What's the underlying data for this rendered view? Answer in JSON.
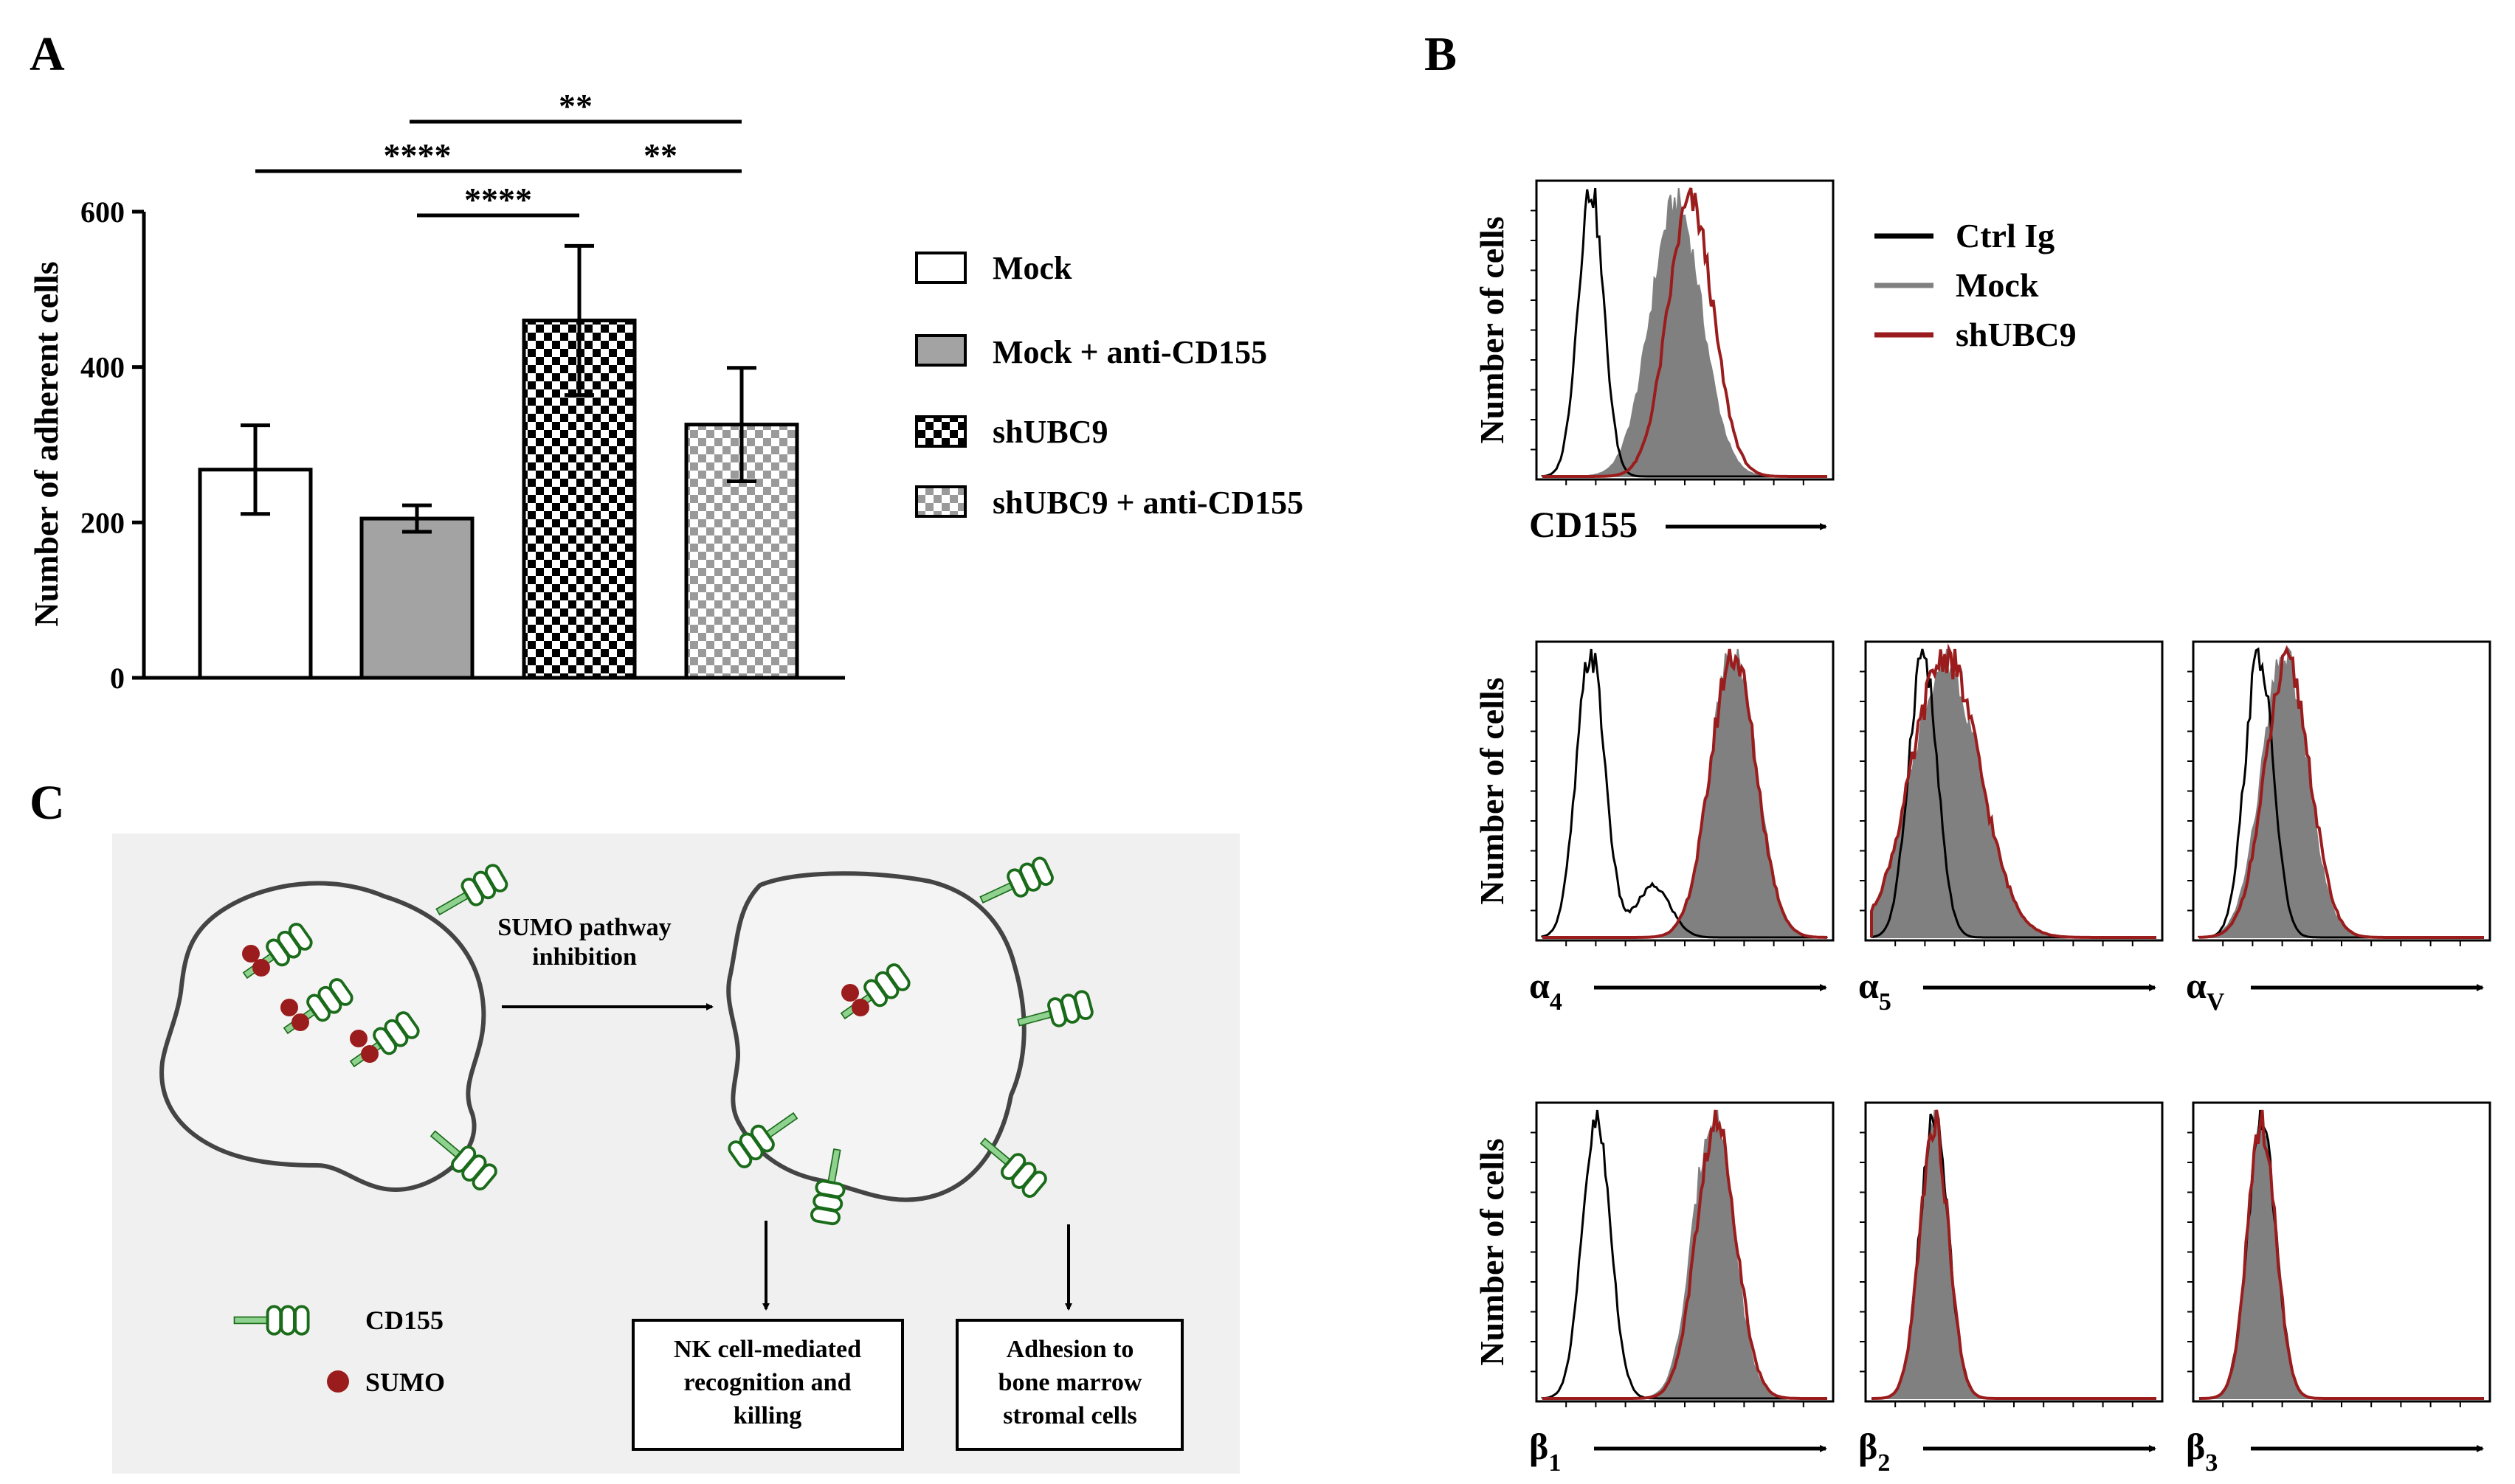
{
  "panels": {
    "a": "A",
    "b": "B",
    "c": "C"
  },
  "chart_data": [
    {
      "type": "bar",
      "panel": "A",
      "ylabel": "Number of adherent cells",
      "ylim": [
        0,
        600
      ],
      "yticks": [
        0,
        200,
        400,
        600
      ],
      "ytick_labels": [
        "0",
        "200",
        "400",
        "600"
      ],
      "categories": [
        "Mock",
        "Mock + anti-CD155",
        "shUBC9",
        "shUBC9 + anti-CD155"
      ],
      "values": [
        268,
        205,
        460,
        326
      ],
      "errors": [
        57,
        17,
        96,
        73
      ],
      "fills": [
        "white",
        "gray",
        "checker-dark",
        "checker-light"
      ],
      "significance": [
        {
          "from": 1,
          "to": 3,
          "label": "**"
        },
        {
          "from": 0,
          "to": 2,
          "label": "****"
        },
        {
          "from": 2,
          "to": 3,
          "label": "**"
        },
        {
          "from": 1,
          "to": 2,
          "label": "****"
        }
      ],
      "legend": [
        "Mock",
        "Mock + anti-CD155",
        "shUBC9",
        "shUBC9 + anti-CD155"
      ]
    },
    {
      "type": "histogram",
      "panel": "B",
      "ylabel": "Number of cells",
      "legend": [
        {
          "label": "Ctrl Ig",
          "color": "#000000"
        },
        {
          "label": "Mock",
          "color": "#808080"
        },
        {
          "label": "shUBC9",
          "color": "#9b1c1c"
        }
      ],
      "plots": [
        {
          "marker": "CD155",
          "sub": "",
          "ctrl_peak": 0.17,
          "ctrl_width": 0.045,
          "ctrl_tail": 0,
          "mock_peak": 0.47,
          "mock_width": 0.09,
          "sh_peak": 0.52,
          "sh_width": 0.08
        },
        {
          "marker": "α",
          "sub": "4",
          "ctrl_peak": 0.17,
          "ctrl_width": 0.05,
          "ctrl_tail": 0.18,
          "mock_peak": 0.67,
          "mock_width": 0.08,
          "sh_peak": 0.67,
          "sh_width": 0.08
        },
        {
          "marker": "α",
          "sub": "5",
          "ctrl_peak": 0.18,
          "ctrl_width": 0.05,
          "ctrl_tail": 0,
          "mock_peak": 0.26,
          "mock_width": 0.12,
          "sh_peak": 0.26,
          "sh_width": 0.12
        },
        {
          "marker": "α",
          "sub": "V",
          "ctrl_peak": 0.21,
          "ctrl_width": 0.05,
          "ctrl_tail": 0,
          "mock_peak": 0.3,
          "mock_width": 0.08,
          "sh_peak": 0.31,
          "sh_width": 0.08
        },
        {
          "marker": "β",
          "sub": "1",
          "ctrl_peak": 0.19,
          "ctrl_width": 0.05,
          "ctrl_tail": 0,
          "mock_peak": 0.6,
          "mock_width": 0.07,
          "sh_peak": 0.61,
          "sh_width": 0.07
        },
        {
          "marker": "β",
          "sub": "2",
          "ctrl_peak": 0.22,
          "ctrl_width": 0.05,
          "ctrl_tail": 0,
          "mock_peak": 0.22,
          "mock_width": 0.05,
          "sh_peak": 0.22,
          "sh_width": 0.05
        },
        {
          "marker": "β",
          "sub": "3",
          "ctrl_peak": 0.22,
          "ctrl_width": 0.05,
          "ctrl_tail": 0,
          "mock_peak": 0.22,
          "mock_width": 0.05,
          "sh_peak": 0.22,
          "sh_width": 0.05
        }
      ]
    }
  ],
  "schematic": {
    "arrow_label_1": "SUMO pathway",
    "arrow_label_2": "inhibition",
    "box1": [
      "NK cell-mediated",
      "recognition and",
      "killing"
    ],
    "box2": [
      "Adhesion to",
      "bone marrow",
      "stromal cells"
    ],
    "legend_cd155": "CD155",
    "legend_sumo": "SUMO"
  }
}
